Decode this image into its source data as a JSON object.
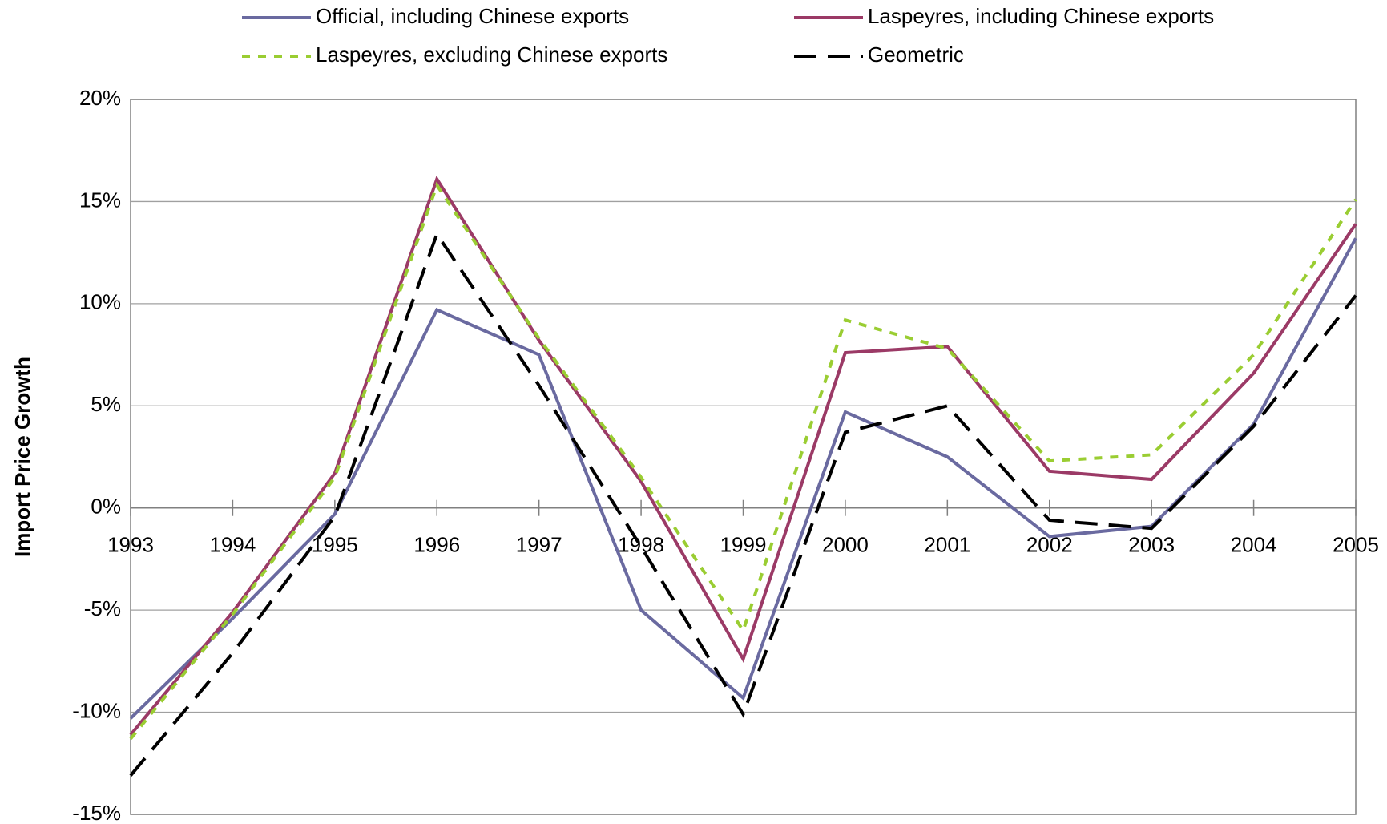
{
  "chart_data": {
    "type": "line",
    "y_label": "Import Price Growth",
    "x": [
      1993,
      1994,
      1995,
      1996,
      1997,
      1998,
      1999,
      2000,
      2001,
      2002,
      2003,
      2004,
      2005
    ],
    "xlim": [
      1993,
      2005
    ],
    "ylim": [
      -15,
      20
    ],
    "yticks": [
      {
        "value": -15,
        "label": "-15%"
      },
      {
        "value": -10,
        "label": "-10%"
      },
      {
        "value": -5,
        "label": "-5%"
      },
      {
        "value": 0,
        "label": "0%"
      },
      {
        "value": 5,
        "label": "5%"
      },
      {
        "value": 10,
        "label": "10%"
      },
      {
        "value": 15,
        "label": "15%"
      },
      {
        "value": 20,
        "label": "20%"
      }
    ],
    "grid": true,
    "series": [
      {
        "name": "Official, including Chinese exports",
        "color": "#6a6aa0",
        "linestyle": "solid",
        "values": [
          -10.3,
          -5.4,
          -0.3,
          9.7,
          7.5,
          -5.0,
          -9.3,
          4.7,
          2.5,
          -1.4,
          -0.9,
          4.1,
          13.2
        ]
      },
      {
        "name": "Laspeyres, including Chinese exports",
        "color": "#9b3a66",
        "linestyle": "solid",
        "values": [
          -11.1,
          -5.1,
          1.7,
          16.1,
          8.2,
          1.3,
          -7.4,
          7.6,
          7.9,
          1.8,
          1.4,
          6.6,
          13.9
        ]
      },
      {
        "name": "Laspeyres, excluding Chinese exports",
        "color": "#9acd32",
        "linestyle": "dotted",
        "values": [
          -11.3,
          -5.2,
          1.5,
          15.8,
          8.3,
          1.5,
          -6.0,
          9.2,
          7.8,
          2.3,
          2.6,
          7.5,
          15.1
        ]
      },
      {
        "name": "Geometric",
        "color": "#000000",
        "linestyle": "dashed",
        "values": [
          -13.1,
          -7.1,
          -0.4,
          13.4,
          6.0,
          -1.9,
          -10.1,
          3.7,
          5.0,
          -0.6,
          -1.0,
          4.0,
          10.4
        ]
      }
    ]
  }
}
